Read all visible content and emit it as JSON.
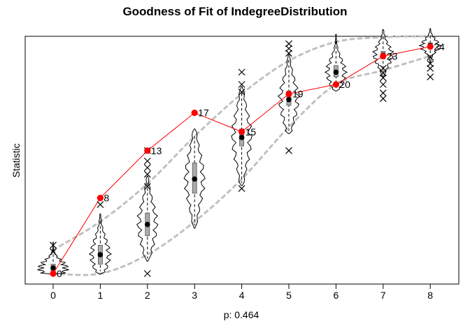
{
  "chart_data": {
    "type": "violin-gof",
    "title": "Goodness of Fit of IndegreeDistribution",
    "xlabel": "p: 0.464",
    "ylabel": "Statistic",
    "x": [
      0,
      1,
      2,
      3,
      4,
      5,
      6,
      7,
      8
    ],
    "ylim": [
      -0.8,
      25.8
    ],
    "observed": {
      "values": [
        0,
        8,
        13,
        17,
        15,
        19,
        20,
        23,
        24
      ],
      "color": "#ff0000"
    },
    "simulated_median": [
      0.6,
      2.0,
      5.2,
      10.0,
      14.4,
      18.4,
      21.3,
      23.1,
      24.1
    ],
    "simulated_box": {
      "q1": [
        0.2,
        1.0,
        4.0,
        8.5,
        13.5,
        17.8,
        20.8,
        22.7,
        23.8
      ],
      "q3": [
        1.0,
        3.0,
        6.4,
        11.7,
        15.3,
        19.3,
        22.0,
        23.5,
        24.4
      ]
    },
    "band": {
      "upper": [
        2.5,
        5.5,
        9.5,
        14.5,
        19.0,
        22.5,
        24.5,
        25.0,
        25.1
      ],
      "lower": [
        0.0,
        0.0,
        2.0,
        5.5,
        10.0,
        15.5,
        20.0,
        21.5,
        23.0
      ],
      "color": "#c0c0c0",
      "style": "dashed"
    },
    "outliers": [
      {
        "x": 0,
        "y": [
          2.3,
          3.0
        ]
      },
      {
        "x": 1,
        "y": [
          7.3
        ]
      },
      {
        "x": 2,
        "y": [
          0.0,
          9.2,
          10.5,
          11.2,
          11.9,
          13.0
        ]
      },
      {
        "x": 4,
        "y": [
          9.0,
          19.2,
          20.0,
          21.3
        ]
      },
      {
        "x": 5,
        "y": [
          13.0,
          23.3,
          23.8,
          24.3
        ]
      },
      {
        "x": 7,
        "y": [
          18.5,
          19.1,
          20.0,
          20.7,
          21.2,
          21.7
        ]
      },
      {
        "x": 8,
        "y": [
          20.8,
          21.7,
          22.2,
          22.9
        ]
      }
    ],
    "grid": false
  }
}
